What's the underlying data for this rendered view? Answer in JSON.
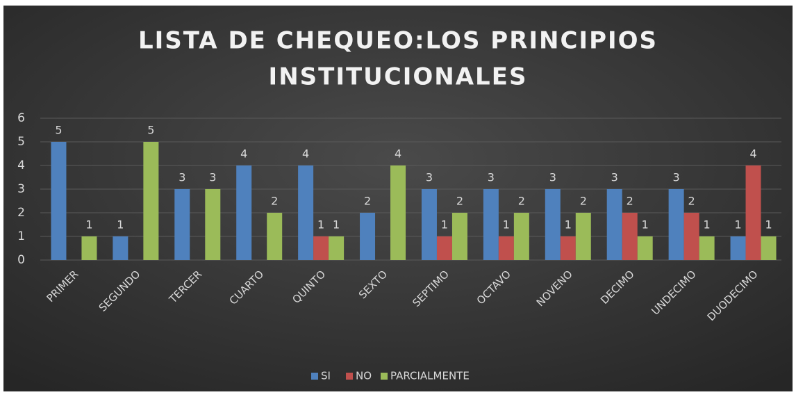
{
  "chart_data": {
    "type": "bar",
    "title": [
      "LISTA DE CHEQUEO:LOS PRINCIPIOS",
      "INSTITUCIONALES"
    ],
    "categories": [
      "PRIMER",
      "SEGUNDO",
      "TERCER",
      "CUARTO",
      "QUINTO",
      "SEXTO",
      "SEPTIMO",
      "OCTAVO",
      "NOVENO",
      "DECIMO",
      "UNDECIMO",
      "DUODECIMO"
    ],
    "series": [
      {
        "name": "SI",
        "color": "#4f81bd",
        "values": [
          5,
          1,
          3,
          4,
          4,
          2,
          3,
          3,
          3,
          3,
          3,
          1
        ]
      },
      {
        "name": "NO",
        "color": "#c0504d",
        "values": [
          null,
          null,
          null,
          null,
          1,
          null,
          1,
          1,
          1,
          2,
          2,
          4
        ]
      },
      {
        "name": "PARCIALMENTE",
        "color": "#9bbb59",
        "values": [
          1,
          5,
          3,
          2,
          1,
          4,
          2,
          2,
          2,
          1,
          1,
          1
        ]
      }
    ],
    "ylim": [
      0,
      6
    ],
    "yticks": [
      0,
      1,
      2,
      3,
      4,
      5,
      6
    ],
    "grid": true,
    "legend": "bottom"
  }
}
